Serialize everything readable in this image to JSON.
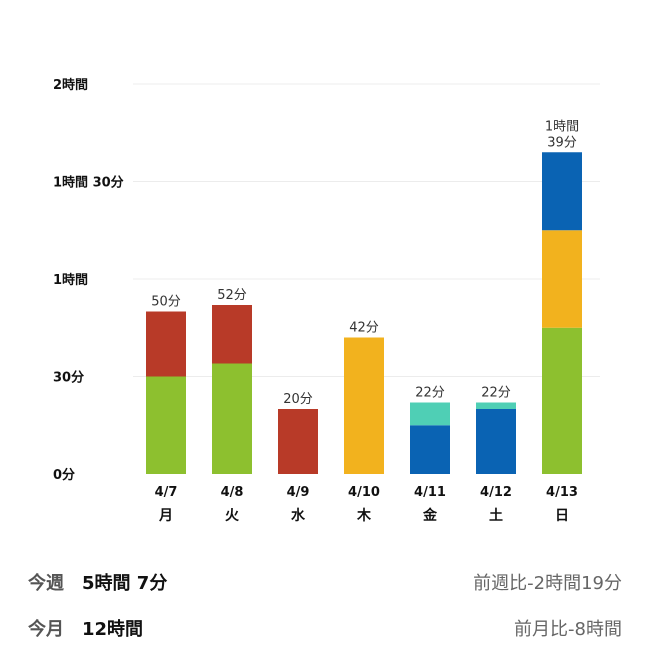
{
  "chart_data": {
    "type": "bar",
    "stacked": true,
    "unit": "minutes",
    "ylim": [
      0,
      120
    ],
    "yticks": [
      {
        "value": 0,
        "label": "0分"
      },
      {
        "value": 30,
        "label": "30分"
      },
      {
        "value": 60,
        "label": "1時間"
      },
      {
        "value": 90,
        "label": "1時間 30分"
      },
      {
        "value": 120,
        "label": "2時間"
      }
    ],
    "categories": [
      "4/7",
      "4/8",
      "4/9",
      "4/10",
      "4/11",
      "4/12",
      "4/13"
    ],
    "weekdays": [
      "月",
      "火",
      "水",
      "木",
      "金",
      "土",
      "日"
    ],
    "series": [
      {
        "name": "green",
        "color": "#8dc02f",
        "values": [
          30,
          34,
          0,
          0,
          0,
          0,
          45
        ]
      },
      {
        "name": "yellow",
        "color": "#f2b21e",
        "values": [
          0,
          0,
          0,
          42,
          0,
          0,
          30
        ]
      },
      {
        "name": "blue",
        "color": "#0a63b3",
        "values": [
          0,
          0,
          0,
          0,
          15,
          20,
          24
        ]
      },
      {
        "name": "teal",
        "color": "#4fcfb5",
        "values": [
          0,
          0,
          0,
          0,
          7,
          2,
          0
        ]
      },
      {
        "name": "red",
        "color": "#b83a28",
        "values": [
          20,
          18,
          20,
          0,
          0,
          0,
          0
        ]
      }
    ],
    "totals": [
      50,
      52,
      20,
      42,
      22,
      22,
      99
    ],
    "total_labels": [
      "50分",
      "52分",
      "20分",
      "42分",
      "22分",
      "22分",
      "1時間\n39分"
    ]
  },
  "summary": {
    "week": {
      "label": "今週",
      "value": "5時間 7分",
      "comparison": "前週比-2時間19分"
    },
    "month": {
      "label": "今月",
      "value": "12時間",
      "comparison": "前月比-8時間"
    }
  }
}
